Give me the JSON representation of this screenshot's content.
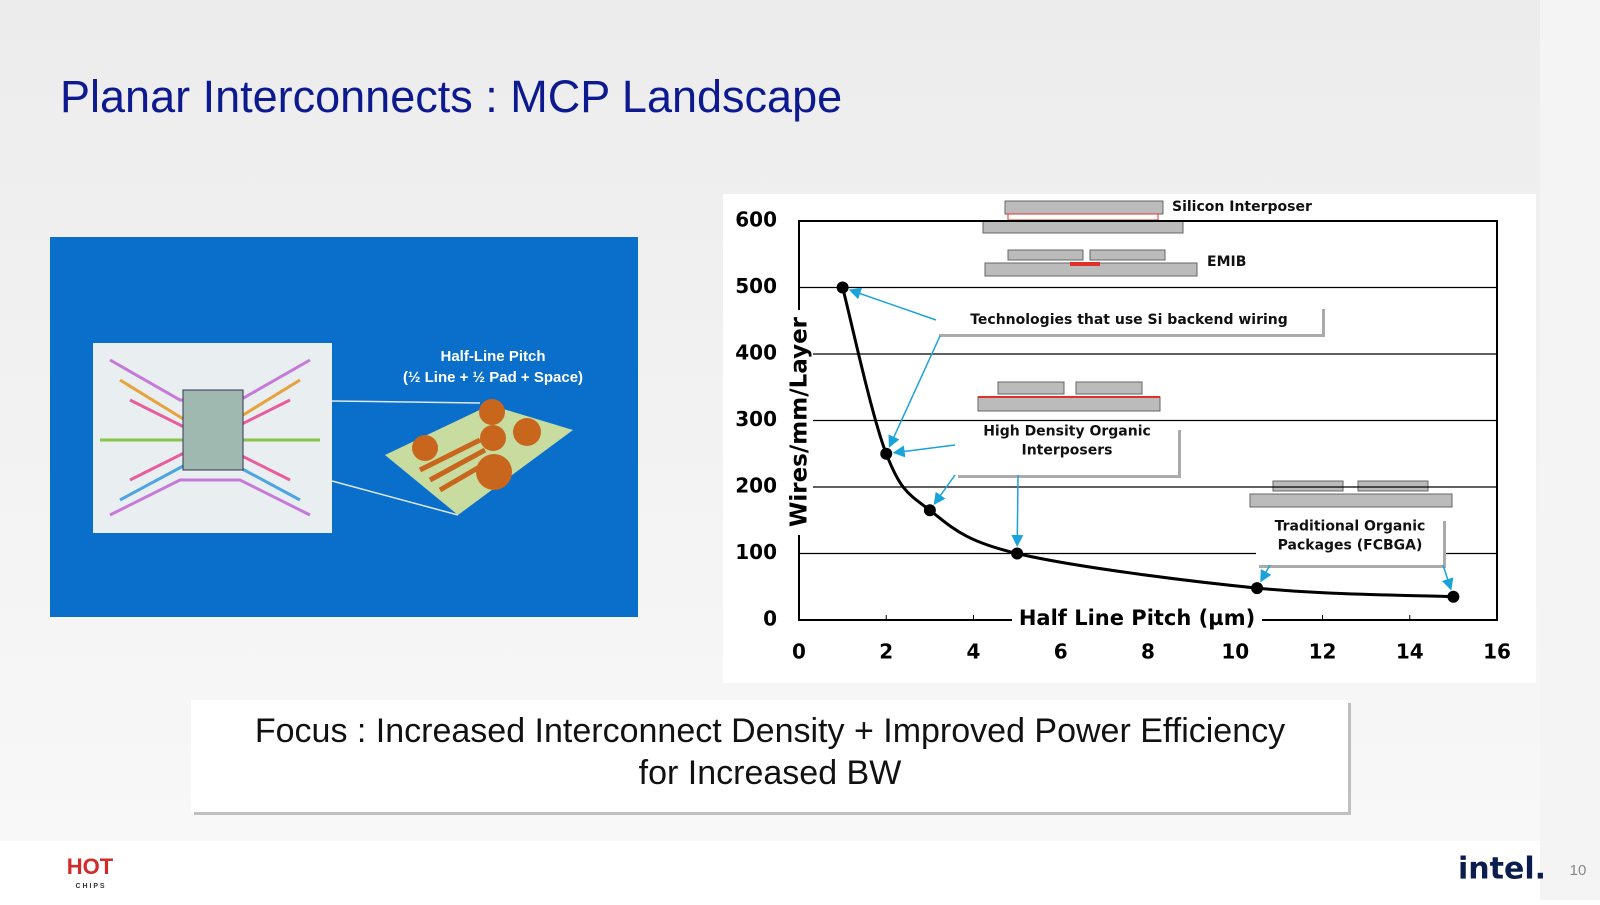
{
  "header": {
    "title": "Planar Interconnects : MCP Landscape"
  },
  "figure": {
    "lines": [
      "Half-Line Pitch",
      "(½ Line + ½ Pad + Space)"
    ]
  },
  "chart_data": {
    "type": "line",
    "x_label": "Half Line Pitch (µm)",
    "y_label": "Wires/mm/Layer",
    "x": [
      1,
      2,
      3,
      5,
      10.5,
      15
    ],
    "values": [
      500,
      250,
      165,
      100,
      48,
      35
    ],
    "color": "#000000",
    "xlim": [
      0,
      16
    ],
    "xticks": [
      0,
      2,
      4,
      6,
      8,
      10,
      12,
      14,
      16
    ],
    "ylim": [
      0,
      600
    ],
    "yticks": [
      0,
      100,
      200,
      300,
      400,
      500,
      600
    ],
    "grid": true,
    "annotations": [
      {
        "lines": [
          "Silicon Interposer"
        ]
      },
      {
        "lines": [
          "EMIB"
        ]
      },
      {
        "lines": [
          "Technologies that use Si backend wiring"
        ]
      },
      {
        "lines": [
          "High Density Organic",
          "Interposers"
        ]
      },
      {
        "lines": [
          "Traditional Organic",
          "Packages (FCBGA)"
        ]
      }
    ]
  },
  "focus": {
    "lines": [
      "Focus : Increased Interconnect Density + Improved Power Efficiency",
      "for Increased BW"
    ]
  },
  "footer": {
    "logo": [
      "HOT",
      "C H I P S"
    ],
    "brand": "intel.",
    "page": "10"
  }
}
